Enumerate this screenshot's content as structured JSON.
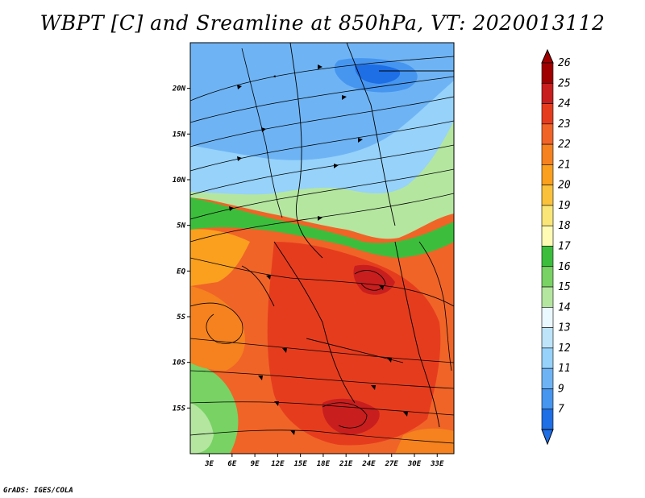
{
  "title": "WBPT [C] and Sreamline at 850hPa, VT: 2020013112",
  "footer": "GrADS: IGES/COLA",
  "map": {
    "lat_ticks": [
      {
        "value": 20,
        "label": "20N"
      },
      {
        "value": 15,
        "label": "15N"
      },
      {
        "value": 10,
        "label": "10N"
      },
      {
        "value": 5,
        "label": "5N"
      },
      {
        "value": 0,
        "label": "EQ"
      },
      {
        "value": -5,
        "label": "5S"
      },
      {
        "value": -10,
        "label": "10S"
      },
      {
        "value": -15,
        "label": "15S"
      }
    ],
    "lon_ticks": [
      {
        "value": 3,
        "label": "3E"
      },
      {
        "value": 6,
        "label": "6E"
      },
      {
        "value": 9,
        "label": "9E"
      },
      {
        "value": 12,
        "label": "12E"
      },
      {
        "value": 15,
        "label": "15E"
      },
      {
        "value": 18,
        "label": "18E"
      },
      {
        "value": 21,
        "label": "21E"
      },
      {
        "value": 24,
        "label": "24E"
      },
      {
        "value": 27,
        "label": "27E"
      },
      {
        "value": 30,
        "label": "30E"
      },
      {
        "value": 33,
        "label": "33E"
      }
    ],
    "lon_range": [
      0.5,
      35.2
    ],
    "lat_range": [
      -20,
      25
    ]
  },
  "colorbar": {
    "labels": [
      "26",
      "25",
      "24",
      "23",
      "22",
      "21",
      "20",
      "19",
      "18",
      "17",
      "16",
      "15",
      "14",
      "13",
      "12",
      "11",
      "9",
      "7"
    ],
    "colors": [
      "#a00000",
      "#c81e1e",
      "#e63c1e",
      "#f06428",
      "#f5821e",
      "#faa01e",
      "#fac23c",
      "#fae678",
      "#fffab4",
      "#3cbe3c",
      "#78d264",
      "#b4e6a0",
      "#eaf8ff",
      "#bee4fa",
      "#96d2fa",
      "#6eb4f5",
      "#4696f0",
      "#1e6ee6"
    ]
  },
  "colors": {
    "hot": "#e83c1e",
    "warm": "#f5821e",
    "green": "#78d264",
    "cool": "#96d2fa",
    "cold": "#4696f0"
  }
}
